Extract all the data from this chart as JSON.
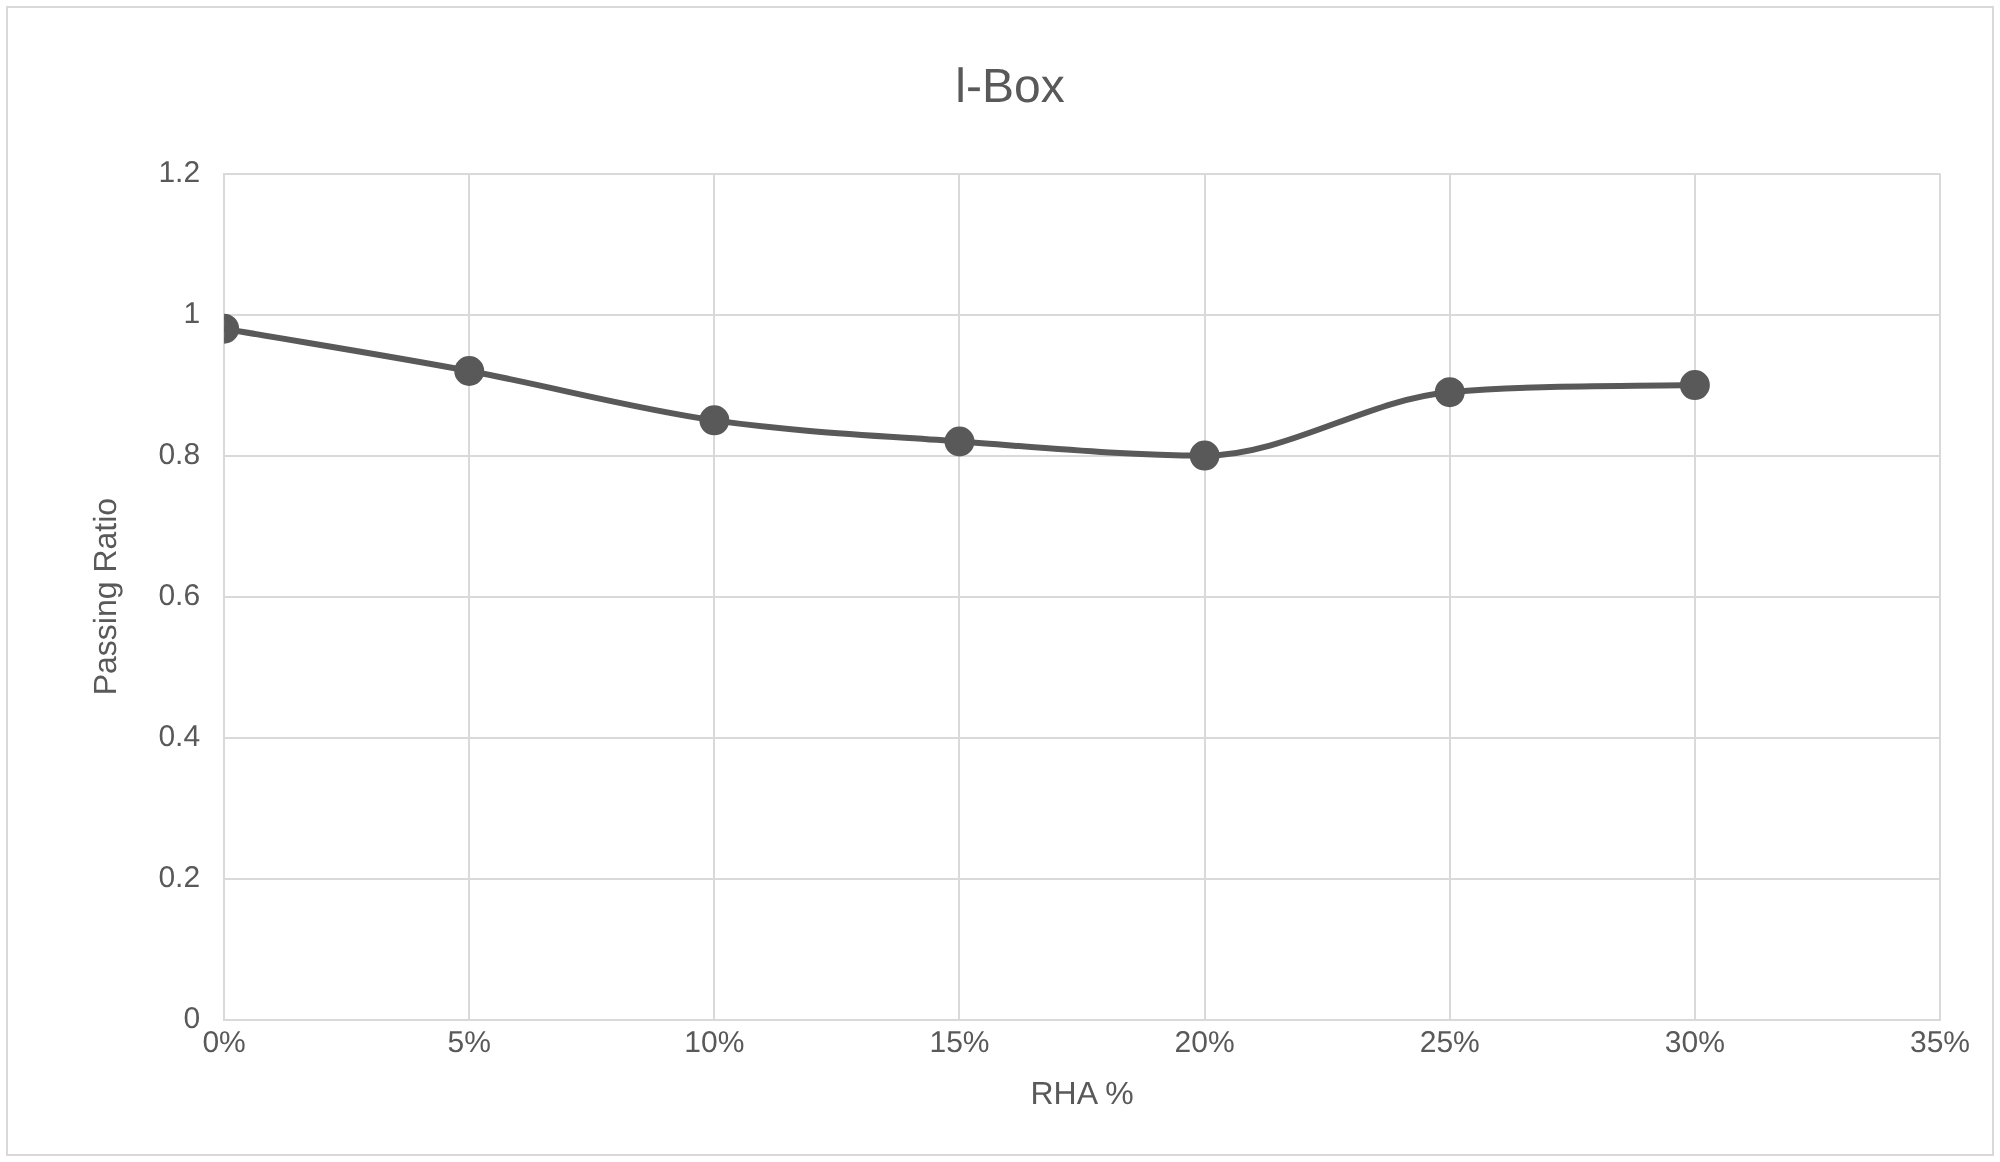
{
  "chart_data": {
    "type": "line",
    "title": "l-Box",
    "xlabel": "RHA %",
    "ylabel": "Passing Ratio",
    "x": [
      0,
      5,
      10,
      15,
      20,
      25,
      30
    ],
    "series": [
      {
        "color": "#595959",
        "values": [
          0.98,
          0.92,
          0.85,
          0.82,
          0.8,
          0.89,
          0.9
        ]
      }
    ],
    "xlim": [
      0,
      35
    ],
    "xticks": [
      {
        "value": 0,
        "label": "0%"
      },
      {
        "value": 5,
        "label": "5%"
      },
      {
        "value": 10,
        "label": "10%"
      },
      {
        "value": 15,
        "label": "15%"
      },
      {
        "value": 20,
        "label": "20%"
      },
      {
        "value": 25,
        "label": "25%"
      },
      {
        "value": 30,
        "label": "30%"
      },
      {
        "value": 35,
        "label": "35%"
      }
    ],
    "ylim": [
      0,
      1.2
    ],
    "yticks": [
      0,
      0.2,
      0.4,
      0.6,
      0.8,
      1,
      1.2
    ],
    "grid": true,
    "legend": false,
    "marker": "circle",
    "line_style": "solid"
  }
}
